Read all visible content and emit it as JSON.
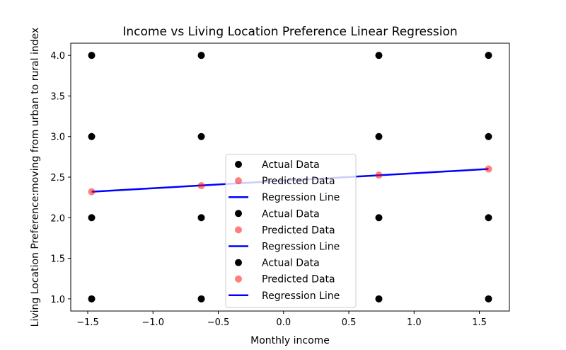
{
  "chart_data": {
    "type": "scatter",
    "title": "Income vs Living Location Preference Linear Regression",
    "xlabel": "Monthly income",
    "ylabel": "Living Location Preference:moving from urban to rural index",
    "xlim": [
      -1.63,
      1.73
    ],
    "ylim": [
      0.85,
      4.15
    ],
    "xticks": [
      -1.5,
      -1.0,
      -0.5,
      0.0,
      0.5,
      1.0,
      1.5
    ],
    "xtick_labels": [
      "−1.5",
      "−1.0",
      "−0.5",
      "0.0",
      "0.5",
      "1.0",
      "1.5"
    ],
    "yticks": [
      1.0,
      1.5,
      2.0,
      2.5,
      3.0,
      3.5,
      4.0
    ],
    "ytick_labels": [
      "1.0",
      "1.5",
      "2.0",
      "2.5",
      "3.0",
      "3.5",
      "4.0"
    ],
    "grid": false,
    "legend_position": "lower-center",
    "colors": {
      "actual": "#000000",
      "predicted": "#ff0000",
      "regression": "#0000ff"
    },
    "series": [
      {
        "name": "Actual Data",
        "kind": "scatter",
        "x": [
          -1.47,
          -1.47,
          -1.47,
          -1.47,
          -0.63,
          -0.63,
          -0.63,
          -0.63,
          0.73,
          0.73,
          0.73,
          0.73,
          1.57,
          1.57,
          1.57,
          1.57
        ],
        "y": [
          1.0,
          2.0,
          3.0,
          4.0,
          1.0,
          2.0,
          3.0,
          4.0,
          1.0,
          2.0,
          3.0,
          4.0,
          1.0,
          2.0,
          3.0,
          4.0
        ]
      },
      {
        "name": "Predicted Data",
        "kind": "scatter",
        "x": [
          -1.47,
          -0.63,
          0.73,
          1.57
        ],
        "y": [
          2.32,
          2.395,
          2.525,
          2.6
        ]
      },
      {
        "name": "Regression Line",
        "kind": "line",
        "x": [
          -1.47,
          1.57
        ],
        "y": [
          2.32,
          2.6
        ]
      }
    ],
    "legend_entries": [
      {
        "label": "Actual Data",
        "kind": "actual"
      },
      {
        "label": "Predicted Data",
        "kind": "predicted"
      },
      {
        "label": "Regression Line",
        "kind": "regression"
      },
      {
        "label": "Actual Data",
        "kind": "actual"
      },
      {
        "label": "Predicted Data",
        "kind": "predicted"
      },
      {
        "label": "Regression Line",
        "kind": "regression"
      },
      {
        "label": "Actual Data",
        "kind": "actual"
      },
      {
        "label": "Predicted Data",
        "kind": "predicted"
      },
      {
        "label": "Regression Line",
        "kind": "regression"
      }
    ]
  }
}
